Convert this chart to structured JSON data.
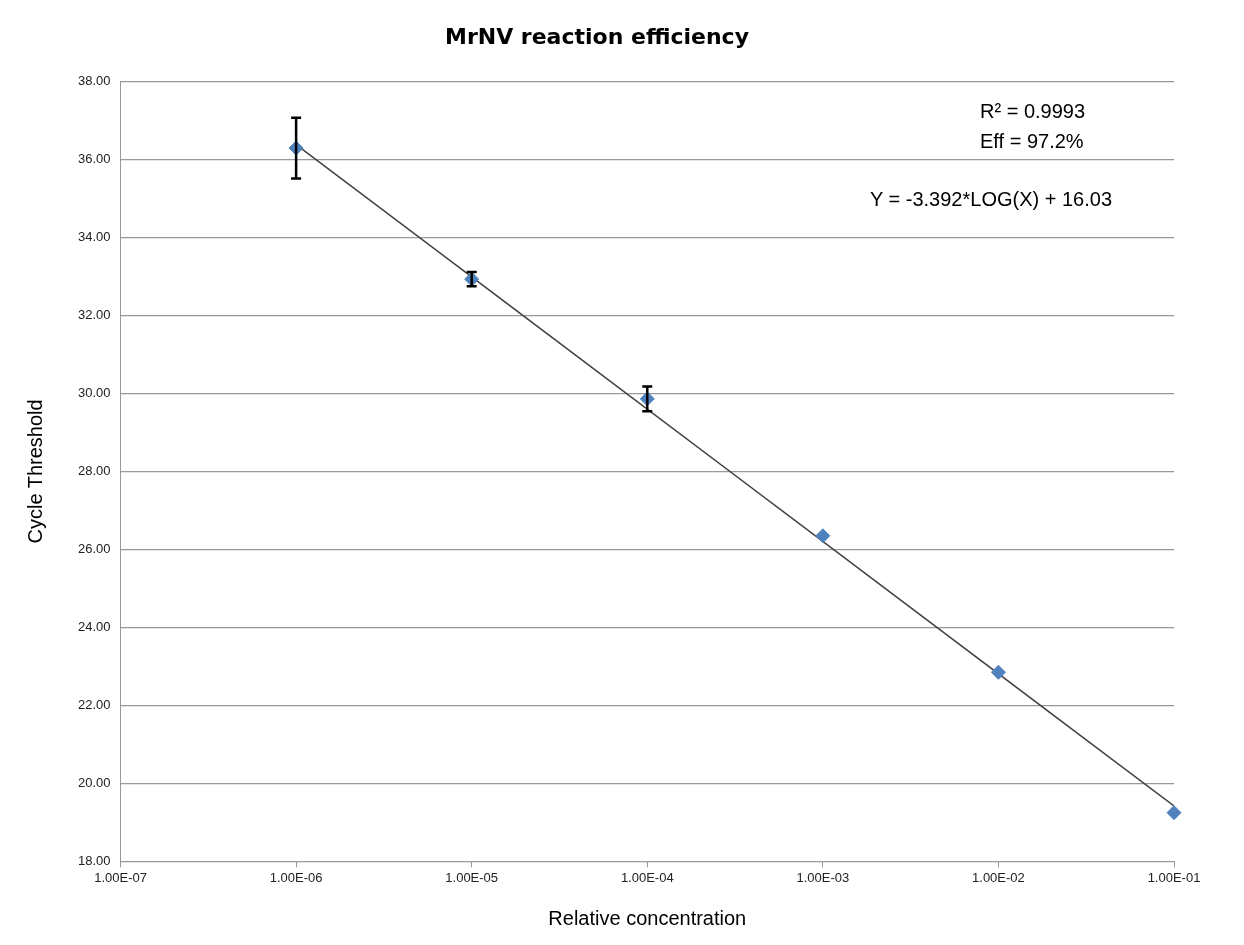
{
  "chart_data": {
    "type": "scatter",
    "title": "MrNV reaction efficiency",
    "xlabel": "Relative concentration",
    "ylabel": "Cycle Threshold",
    "annotations": [
      "R² = 0.9993",
      "Eff = 97.2%",
      "Y = -3.392*LOG(X) + 16.03"
    ],
    "log": "x",
    "grid": "y",
    "xlim": [
      1e-07,
      0.1
    ],
    "xticks": [
      {
        "value": 1e-07,
        "label": "1.00E-07"
      },
      {
        "value": 1e-06,
        "label": "1.00E-06"
      },
      {
        "value": 1e-05,
        "label": "1.00E-05"
      },
      {
        "value": 0.0001,
        "label": "1.00E-04"
      },
      {
        "value": 0.001,
        "label": "1.00E-03"
      },
      {
        "value": 0.01,
        "label": "1.00E-02"
      },
      {
        "value": 0.1,
        "label": "1.00E-01"
      }
    ],
    "ylim": [
      18,
      38
    ],
    "yticks": [
      {
        "value": 18,
        "label": "18.00"
      },
      {
        "value": 20,
        "label": "20.00"
      },
      {
        "value": 22,
        "label": "22.00"
      },
      {
        "value": 24,
        "label": "24.00"
      },
      {
        "value": 26,
        "label": "26.00"
      },
      {
        "value": 28,
        "label": "28.00"
      },
      {
        "value": 30,
        "label": "30.00"
      },
      {
        "value": 32,
        "label": "32.00"
      },
      {
        "value": 34,
        "label": "34.00"
      },
      {
        "value": 36,
        "label": "36.00"
      },
      {
        "value": 38,
        "label": "38.00"
      }
    ],
    "series": [
      {
        "marker": "diamond",
        "color": "#4f81bd",
        "x": [
          1e-06,
          1e-05,
          0.0001,
          0.001,
          0.01,
          0.1
        ],
        "values": [
          36.29,
          32.93,
          29.86,
          26.35,
          22.85,
          19.25
        ],
        "errors": [
          0.78,
          0.18,
          0.32,
          null,
          null,
          null
        ]
      },
      {
        "type": "line",
        "marker": "none",
        "color": "#404040",
        "x": [
          1e-06,
          0.1
        ],
        "values": [
          36.38,
          19.42
        ]
      }
    ]
  }
}
